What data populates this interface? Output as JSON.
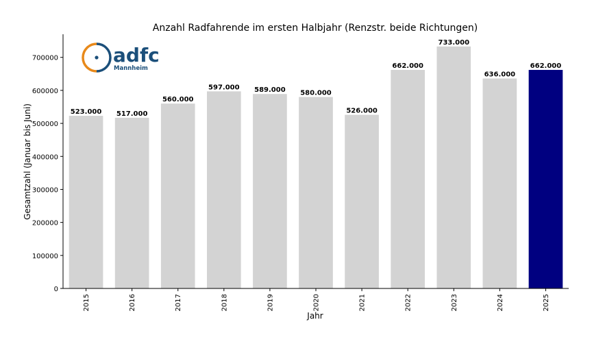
{
  "logo": {
    "wordmark": "adfc",
    "city": "Mannheim",
    "colors": {
      "navy": "#1b4f7a",
      "orange": "#e8891a"
    }
  },
  "chart_data": {
    "type": "bar",
    "title": "Anzahl Radfahrende im ersten Halbjahr (Renzstr. beide Richtungen)",
    "xlabel": "Jahr",
    "ylabel": "Gesamtzahl (Januar bis Juni)",
    "categories": [
      "2015",
      "2016",
      "2017",
      "2018",
      "2019",
      "2020",
      "2021",
      "2022",
      "2023",
      "2024",
      "2025"
    ],
    "values": [
      523000,
      517000,
      560000,
      597000,
      589000,
      580000,
      526000,
      662000,
      733000,
      636000,
      662000
    ],
    "data_labels": [
      "523.000",
      "517.000",
      "560.000",
      "597.000",
      "589.000",
      "580.000",
      "526.000",
      "662.000",
      "733.000",
      "636.000",
      "662.000"
    ],
    "ylim": [
      0,
      770000
    ],
    "yticks": [
      0,
      100000,
      200000,
      300000,
      400000,
      500000,
      600000,
      700000
    ],
    "ytick_labels": [
      "0",
      "100000",
      "200000",
      "300000",
      "400000",
      "500000",
      "600000",
      "700000"
    ],
    "grid": false,
    "colors": {
      "default_bar": "#d3d3d3",
      "highlight_bar": "#000080"
    },
    "highlight_category": "2025"
  }
}
